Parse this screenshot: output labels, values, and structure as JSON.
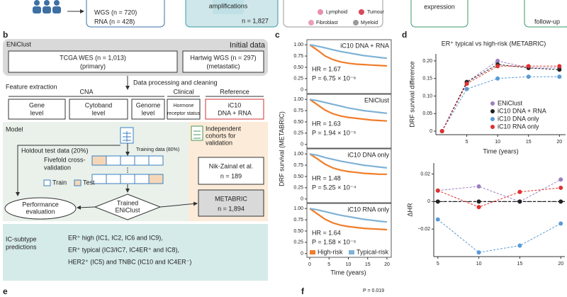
{
  "top": {
    "wgs": "WGS (n = 720)",
    "rna": "RNA (n = 428)",
    "amplifications": "amplifications",
    "amp_n": "n = 1,827",
    "cells": [
      "Lymphoid",
      "Tumour",
      "Fibroblast",
      "Myeloid"
    ],
    "expression": "expression",
    "follow_up": "follow-up"
  },
  "panel_b": {
    "label": "b",
    "title": "ENiClust",
    "initial_data": "Initial data",
    "tcga": [
      "TCGA WES (n = 1,013)",
      "(primary)"
    ],
    "hartwig": [
      "Hartwig WGS (n = 297)",
      "(metastatic)"
    ],
    "processing": "Data processing and cleaning",
    "feature_extraction": "Feature extraction",
    "groups": [
      "CNA",
      "Clinical",
      "Reference"
    ],
    "features": [
      [
        "Gene",
        "level"
      ],
      [
        "Cytoband",
        "level"
      ],
      [
        "Genome",
        "level"
      ],
      [
        "Hormone",
        "receptor status"
      ],
      [
        "iC10",
        "DNA + RNA"
      ]
    ],
    "model": "Model",
    "holdout": "Holdout test data (20%)",
    "training": "Training data (80%)",
    "cv": [
      "Fivefold cross-",
      "validation"
    ],
    "train": "Train",
    "test": "Test",
    "performance": [
      "Performance",
      "evaluation"
    ],
    "trained": [
      "Trained",
      "ENiClust"
    ],
    "cohorts": [
      "Independent",
      "cohorts for",
      "validation"
    ],
    "nik": [
      "Nik-Zainal et al.",
      "n = 189"
    ],
    "metabric": [
      "METABRIC",
      "n = 1,894"
    ],
    "predictions_title": [
      "IC-subtype",
      "predictions"
    ],
    "predictions": [
      "ER⁺ high (IC1, IC2, IC6 and IC9),",
      "ER⁺ typical (IC3/IC7, IC4ER⁺ and IC8),",
      "HER2⁺ (IC5) and TNBC (IC10 and IC4ER⁻)"
    ]
  },
  "chart_data": [
    {
      "type": "km",
      "panel_label": "c",
      "ylabel": "DRF survival (METABRIC)",
      "annotation": "iC10 DNA + RNA",
      "hr": "HR = 1.67",
      "p": "P = 6.75 × 10⁻⁶",
      "x": [
        0,
        2,
        4,
        6,
        8,
        10,
        12,
        14,
        16,
        18,
        20
      ],
      "xlim": [
        0,
        20
      ],
      "ylim": [
        -0.02,
        1.05
      ],
      "yticks": [
        0,
        0.25,
        {
          "value": 0.5,
          "label": "0.50"
        },
        0.75,
        {
          "value": 1,
          "label": "1.00"
        }
      ],
      "series": [
        {
          "color": "#f07d2a",
          "values": [
            1,
            0.88,
            0.75,
            0.67,
            0.62,
            0.59,
            0.57,
            0.56,
            0.55,
            0.54,
            0.53
          ]
        },
        {
          "color": "#7fb2d6",
          "values": [
            1,
            0.97,
            0.93,
            0.89,
            0.85,
            0.82,
            0.79,
            0.76,
            0.74,
            0.72,
            0.7
          ]
        }
      ]
    },
    {
      "type": "km",
      "annotation": "ENiClust",
      "hr": "HR = 1.63",
      "p": "P = 1.94 × 10⁻⁵",
      "x": [
        0,
        2,
        4,
        6,
        8,
        10,
        12,
        14,
        16,
        18,
        20
      ],
      "xlim": [
        0,
        20
      ],
      "ylim": [
        -0.02,
        1.05
      ],
      "yticks": [
        0,
        0.25,
        {
          "value": 0.5,
          "label": "0.50"
        },
        0.75,
        {
          "value": 1,
          "label": "1.00"
        }
      ],
      "series": [
        {
          "color": "#f07d2a",
          "values": [
            1,
            0.88,
            0.76,
            0.68,
            0.63,
            0.6,
            0.58,
            0.56,
            0.54,
            0.53,
            0.52
          ]
        },
        {
          "color": "#7fb2d6",
          "values": [
            1,
            0.97,
            0.93,
            0.89,
            0.85,
            0.81,
            0.78,
            0.75,
            0.73,
            0.71,
            0.69
          ]
        }
      ]
    },
    {
      "type": "km",
      "annotation": "iC10 DNA only",
      "hr": "HR = 1.48",
      "p": "P = 5.25 × 10⁻⁴",
      "x": [
        0,
        2,
        4,
        6,
        8,
        10,
        12,
        14,
        16,
        18,
        20
      ],
      "xlim": [
        0,
        20
      ],
      "ylim": [
        -0.02,
        1.05
      ],
      "yticks": [
        0,
        0.25,
        {
          "value": 0.5,
          "label": "0.50"
        },
        0.75,
        {
          "value": 1,
          "label": "1.00"
        }
      ],
      "series": [
        {
          "color": "#f07d2a",
          "values": [
            1,
            0.89,
            0.77,
            0.69,
            0.64,
            0.61,
            0.59,
            0.57,
            0.56,
            0.55,
            0.55
          ]
        },
        {
          "color": "#7fb2d6",
          "values": [
            1,
            0.97,
            0.92,
            0.88,
            0.84,
            0.81,
            0.78,
            0.75,
            0.73,
            0.71,
            0.69
          ]
        }
      ]
    },
    {
      "type": "km",
      "annotation": "iC10 RNA only",
      "hr": "HR = 1.64",
      "p": "P = 1.58 × 10⁻⁵",
      "xlabel": "Time (years)",
      "x": [
        0,
        2,
        4,
        6,
        8,
        10,
        12,
        14,
        16,
        18,
        20
      ],
      "xlim": [
        0,
        20
      ],
      "ylim": [
        -0.02,
        1.05
      ],
      "xticks": [
        0,
        5,
        10,
        15,
        20
      ],
      "yticks": [
        0,
        0.25,
        {
          "value": 0.5,
          "label": "0.50"
        },
        0.75,
        {
          "value": 1,
          "label": "1.00"
        }
      ],
      "series": [
        {
          "name": "High-risk",
          "color": "#f07d2a",
          "values": [
            1,
            0.88,
            0.76,
            0.68,
            0.63,
            0.6,
            0.58,
            0.56,
            0.55,
            0.54,
            0.53
          ]
        },
        {
          "name": "Typical-risk",
          "color": "#7fb2d6",
          "values": [
            1,
            0.97,
            0.93,
            0.89,
            0.85,
            0.82,
            0.79,
            0.76,
            0.74,
            0.72,
            0.7
          ]
        }
      ]
    },
    {
      "type": "dotline",
      "panel_label": "d",
      "title": "ER⁺ typical vs high-risk (METABRIC)",
      "ylabel": "DRF survival difference",
      "xlabel": "Time (years)",
      "x": [
        1,
        5,
        10,
        15,
        20
      ],
      "xlim": [
        0,
        21
      ],
      "ylim": [
        -0.01,
        0.22
      ],
      "xticks": [
        5,
        10,
        15,
        20
      ],
      "yticks": [
        0,
        0.05,
        {
          "value": 0.1,
          "label": "0.10"
        },
        0.15,
        {
          "value": 0.2,
          "label": "0.20"
        }
      ],
      "series": [
        {
          "name": "ENiClust",
          "color": "#9b7fc0",
          "values": [
            0,
            0.14,
            0.2,
            0.18,
            0.18
          ]
        },
        {
          "name": "iC10 DNA + RNA",
          "color": "#222222",
          "values": [
            0,
            0.14,
            0.19,
            0.18,
            0.175
          ]
        },
        {
          "name": "iC10 DNA only",
          "color": "#5b9bd5",
          "values": [
            0,
            0.12,
            0.15,
            0.155,
            0.155
          ]
        },
        {
          "name": "iC10 RNA only",
          "color": "#e03030",
          "values": [
            0,
            0.135,
            0.185,
            0.185,
            0.185
          ]
        }
      ]
    },
    {
      "type": "dotline",
      "ylabel": "ΔHR",
      "x": [
        5,
        10,
        15,
        20
      ],
      "xlim": [
        4.5,
        20.5
      ],
      "ylim": [
        -0.04,
        0.028
      ],
      "hline": 0,
      "xticks": [
        5,
        10,
        15,
        20
      ],
      "yticks": [
        {
          "value": -0.02,
          "label": "−0.02"
        },
        0,
        0.02
      ],
      "series": [
        {
          "color": "#9b7fc0",
          "values": [
            0.008,
            0.011,
            0,
            0.016
          ]
        },
        {
          "color": "#222222",
          "values": [
            0,
            0,
            0,
            0
          ]
        },
        {
          "color": "#5b9bd5",
          "values": [
            -0.013,
            -0.037,
            -0.032,
            -0.016
          ]
        },
        {
          "color": "#e03030",
          "values": [
            0.008,
            -0.004,
            0.007,
            0.01
          ]
        }
      ]
    }
  ],
  "bottom": {
    "label_e": "e",
    "label_f": "f",
    "p_value": "P = 0.019"
  }
}
